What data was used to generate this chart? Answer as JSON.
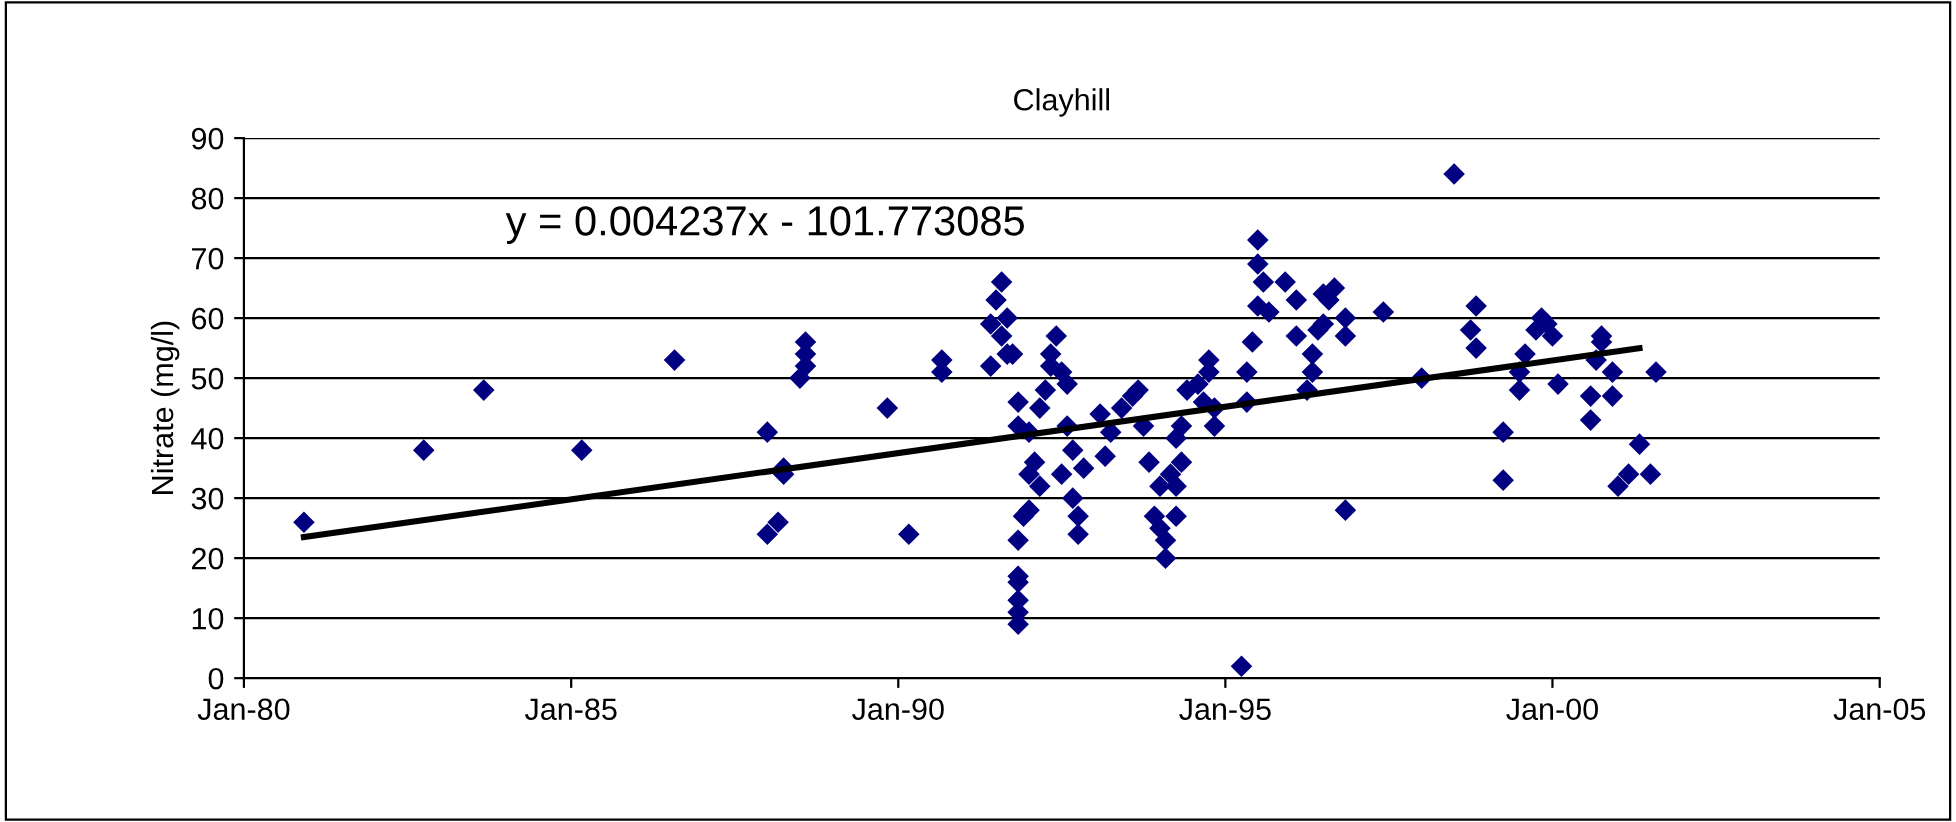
{
  "chart_data": {
    "type": "scatter",
    "title": "Clayhill",
    "ylabel": "Nitrate (mg/l)",
    "annotations": [
      "y = 0.004237x - 101.773085"
    ],
    "xlim": [
      "1980-01",
      "2005-01"
    ],
    "ylim": [
      0,
      90
    ],
    "xticks": [
      {
        "value": "1980-01",
        "label": "Jan-80"
      },
      {
        "value": "1985-01",
        "label": "Jan-85"
      },
      {
        "value": "1990-01",
        "label": "Jan-90"
      },
      {
        "value": "1995-01",
        "label": "Jan-95"
      },
      {
        "value": "2000-01",
        "label": "Jan-00"
      },
      {
        "value": "2005-01",
        "label": "Jan-05"
      }
    ],
    "yticks": [
      0,
      10,
      20,
      30,
      40,
      50,
      60,
      70,
      80,
      90
    ],
    "grid": "y",
    "legend": false,
    "series": [
      {
        "color": "#000080",
        "marker": "diamond",
        "x": [
          "1980-12",
          "1982-10",
          "1983-09",
          "1985-03",
          "1986-08",
          "1988-01",
          "1988-01",
          "1988-03",
          "1988-04",
          "1988-04",
          "1988-07",
          "1988-08",
          "1988-08",
          "1988-08",
          "1989-11",
          "1990-03",
          "1990-09",
          "1990-09",
          "1991-08",
          "1991-07",
          "1991-06",
          "1991-09",
          "1991-08",
          "1991-10",
          "1991-06",
          "1991-09",
          "1991-11",
          "1991-11",
          "1991-11",
          "1991-11",
          "1991-11",
          "1991-11",
          "1991-11",
          "1991-12",
          "1991-11",
          "1992-01",
          "1992-01",
          "1992-02",
          "1992-03",
          "1992-01",
          "1992-04",
          "1992-03",
          "1992-06",
          "1992-05",
          "1992-07",
          "1992-05",
          "1992-08",
          "1992-08",
          "1992-07",
          "1992-09",
          "1992-10",
          "1992-10",
          "1992-09",
          "1992-11",
          "1993-02",
          "1993-04",
          "1993-06",
          "1993-03",
          "1993-08",
          "1993-09",
          "1993-10",
          "1993-11",
          "1994-01",
          "1993-12",
          "1994-02",
          "1994-02",
          "1994-01",
          "1994-03",
          "1994-04",
          "1994-05",
          "1994-04",
          "1994-04",
          "1994-05",
          "1994-06",
          "1994-08",
          "1994-10",
          "1994-10",
          "1994-11",
          "1994-11",
          "1994-09",
          "1995-04",
          "1995-05",
          "1995-06",
          "1995-05",
          "1995-07",
          "1995-07",
          "1995-08",
          "1995-07",
          "1995-09",
          "1995-12",
          "1996-02",
          "1996-02",
          "1996-05",
          "1996-05",
          "1996-04",
          "1996-07",
          "1996-07",
          "1996-09",
          "1996-08",
          "1996-11",
          "1996-11",
          "1996-06",
          "1996-11",
          "1997-06",
          "1998-01",
          "1998-07",
          "1998-11",
          "1998-10",
          "1998-11",
          "1999-04",
          "1999-04",
          "1999-07",
          "1999-07",
          "1999-08",
          "1999-10",
          "1999-11",
          "1999-12",
          "2000-01",
          "2000-02",
          "2000-10",
          "2000-10",
          "2000-09",
          "2000-08",
          "2000-08",
          "2000-12",
          "2000-12",
          "2001-05",
          "2001-07",
          "2001-01",
          "2001-03",
          "2001-08"
        ],
        "values": [
          26,
          38,
          48,
          38,
          53,
          41,
          24,
          26,
          35,
          34,
          50,
          52,
          54,
          56,
          45,
          24,
          53,
          51,
          66,
          63,
          59,
          60,
          57,
          54,
          52,
          54,
          46,
          42,
          17,
          16,
          13,
          11,
          9,
          27,
          23,
          28,
          41,
          36,
          32,
          34,
          48,
          45,
          57,
          54,
          51,
          52,
          49,
          42,
          34,
          30,
          27,
          24,
          38,
          35,
          44,
          41,
          45,
          37,
          47,
          48,
          42,
          36,
          32,
          27,
          23,
          20,
          25,
          34,
          40,
          36,
          32,
          27,
          42,
          48,
          49,
          53,
          51,
          45,
          42,
          46,
          2,
          51,
          56,
          46,
          73,
          69,
          66,
          62,
          61,
          66,
          63,
          57,
          54,
          51,
          48,
          59,
          64,
          65,
          63,
          60,
          57,
          58,
          28,
          61,
          50,
          84,
          62,
          58,
          55,
          41,
          33,
          48,
          51,
          54,
          58,
          60,
          59,
          57,
          49,
          57,
          56,
          53,
          47,
          43,
          51,
          47,
          39,
          34,
          32,
          34,
          51
        ]
      },
      {
        "type": "line",
        "color": "#000000",
        "line_style": "solid",
        "marker": "none",
        "x": [
          "1980-12",
          "2001-05"
        ],
        "values": [
          23.5,
          55
        ]
      }
    ]
  }
}
